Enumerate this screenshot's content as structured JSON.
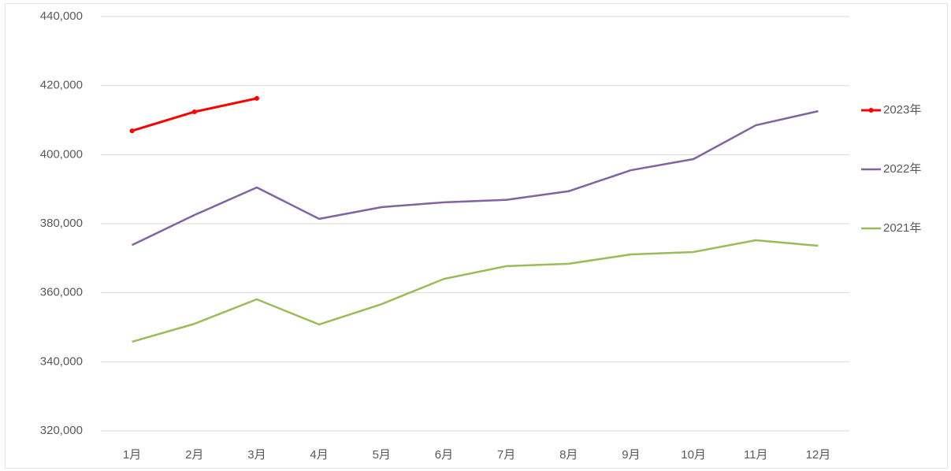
{
  "chart_data": {
    "type": "line",
    "categories": [
      "1月",
      "2月",
      "3月",
      "4月",
      "5月",
      "6月",
      "7月",
      "8月",
      "9月",
      "10月",
      "11月",
      "12月"
    ],
    "series": [
      {
        "name": "2023年",
        "color": "#ff0000",
        "markers": true,
        "values": [
          406900,
          412400,
          416300,
          null,
          null,
          null,
          null,
          null,
          null,
          null,
          null,
          null
        ]
      },
      {
        "name": "2022年",
        "color": "#8064a2",
        "markers": false,
        "values": [
          373800,
          382500,
          390500,
          381400,
          384800,
          386200,
          386900,
          389400,
          395500,
          398700,
          408500,
          412600
        ]
      },
      {
        "name": "2021年",
        "color": "#9bbb59",
        "markers": false,
        "values": [
          345800,
          351000,
          358100,
          350800,
          356700,
          364000,
          367700,
          368400,
          371100,
          371800,
          375200,
          373600
        ]
      }
    ],
    "ylim": [
      320000,
      440000
    ],
    "yticks": [
      {
        "value": 320000,
        "label": "320,000"
      },
      {
        "value": 340000,
        "label": "340,000"
      },
      {
        "value": 360000,
        "label": "360,000"
      },
      {
        "value": 380000,
        "label": "380,000"
      },
      {
        "value": 400000,
        "label": "400,000"
      },
      {
        "value": 420000,
        "label": "420,000"
      },
      {
        "value": 440000,
        "label": "440,000"
      }
    ],
    "grid": true,
    "legend": "right"
  }
}
